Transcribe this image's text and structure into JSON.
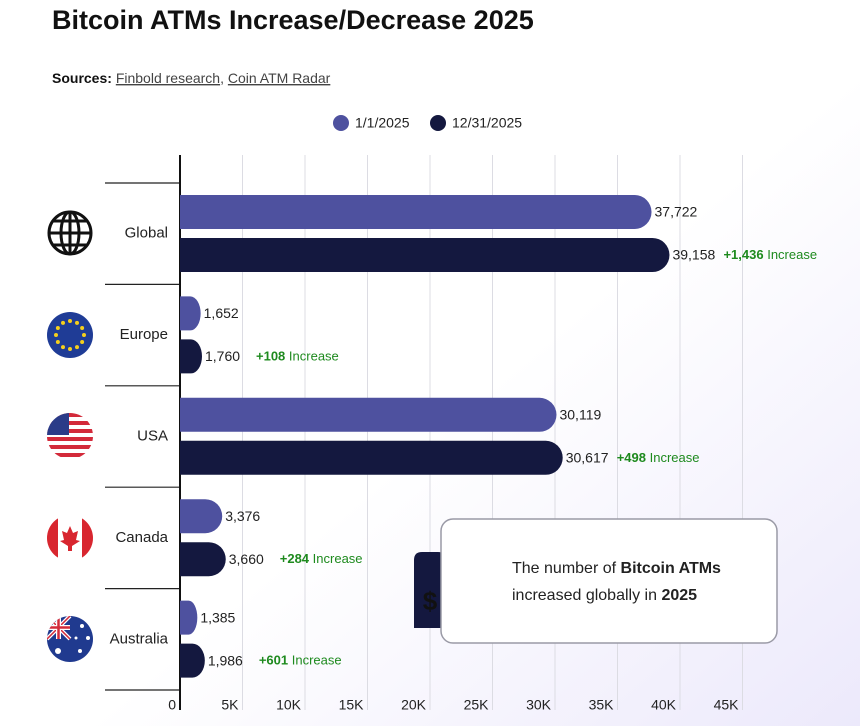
{
  "chart_data": {
    "type": "bar",
    "orientation": "horizontal",
    "title": "Bitcoin ATMs Increase/Decrease 2025",
    "sources": {
      "label": "Sources:",
      "items": [
        "Finbold research",
        "Coin ATM Radar"
      ],
      "separator": ","
    },
    "categories": [
      "Global",
      "Europe",
      "USA",
      "Canada",
      "Australia"
    ],
    "series": [
      {
        "name": "1/1/2025",
        "color": "#4e519f",
        "values": [
          37722,
          1652,
          30119,
          3376,
          1385
        ],
        "value_labels": [
          "37,722",
          "1,652",
          "30,119",
          "3,376",
          "1,385"
        ]
      },
      {
        "name": "12/31/2025",
        "color": "#14183f",
        "values": [
          39158,
          1760,
          30617,
          3660,
          1986
        ],
        "value_labels": [
          "39,158",
          "1,760",
          "30,617",
          "3,660",
          "1,986"
        ]
      }
    ],
    "change_labels": [
      "+1,436",
      "+108",
      "+498",
      "+284",
      "+601"
    ],
    "change_word": "Increase",
    "xlim": [
      0,
      50000
    ],
    "xticks": [
      0,
      {
        "value": 5000,
        "label": "5K"
      },
      {
        "value": 10000,
        "label": "10K"
      },
      {
        "value": 15000,
        "label": "15K"
      },
      {
        "value": 20000,
        "label": "20K"
      },
      {
        "value": 25000,
        "label": "25K"
      },
      {
        "value": 30000,
        "label": "30K"
      },
      {
        "value": 35000,
        "label": "35K"
      },
      {
        "value": 40000,
        "label": "40K"
      },
      {
        "value": 45000,
        "label": "45K"
      }
    ],
    "grid": true,
    "legend": "top",
    "callout": {
      "parts": [
        "The number of",
        "Bitcoin ATMs",
        "increased globally in",
        "2025"
      ]
    }
  }
}
